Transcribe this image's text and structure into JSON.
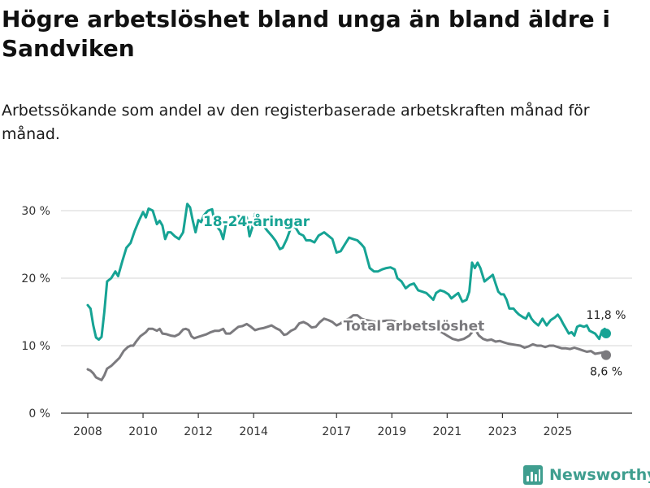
{
  "header": {
    "title": "Högre arbetslöshet bland unga än bland äldre i Sandviken",
    "subtitle": "Arbetssökande som andel av den registerbaserade arbetskraften månad för månad."
  },
  "branding": {
    "name": "Newsworthy"
  },
  "colors": {
    "youth": "#16a394",
    "total": "#7b7a7e",
    "grid": "#d6d6d6",
    "axis": "#333333",
    "brand": "#3f9e8f"
  },
  "chart_data": {
    "type": "line",
    "title": "Högre arbetslöshet bland unga än bland äldre i Sandviken",
    "subtitle": "Arbetssökande som andel av den registerbaserade arbetskraften månad för månad.",
    "xlim": [
      2008.0,
      2026.75
    ],
    "ylim": [
      0,
      33
    ],
    "y_ticks": [
      {
        "value": 0,
        "label": "0 %"
      },
      {
        "value": 10,
        "label": "10 %"
      },
      {
        "value": 20,
        "label": "20 %"
      },
      {
        "value": 30,
        "label": "30 %"
      }
    ],
    "x_ticks": [
      {
        "value": 2008,
        "label": "2008"
      },
      {
        "value": 2010,
        "label": "2010"
      },
      {
        "value": 2012,
        "label": "2012"
      },
      {
        "value": 2014,
        "label": "2014"
      },
      {
        "value": 2017,
        "label": "2017"
      },
      {
        "value": 2019,
        "label": "2019"
      },
      {
        "value": 2021,
        "label": "2021"
      },
      {
        "value": 2023,
        "label": "2023"
      },
      {
        "value": 2025,
        "label": "2025"
      }
    ],
    "series": [
      {
        "name": "18-24-åringar",
        "label": "18-24-åringar",
        "end_label": "11,8 %",
        "points": [
          [
            2008.0,
            16.0
          ],
          [
            2008.1,
            15.5
          ],
          [
            2008.2,
            13.0
          ],
          [
            2008.3,
            11.2
          ],
          [
            2008.4,
            10.9
          ],
          [
            2008.5,
            11.3
          ],
          [
            2008.6,
            15.0
          ],
          [
            2008.7,
            19.5
          ],
          [
            2008.85,
            20.0
          ],
          [
            2009.0,
            21.0
          ],
          [
            2009.1,
            20.3
          ],
          [
            2009.25,
            22.5
          ],
          [
            2009.4,
            24.5
          ],
          [
            2009.55,
            25.2
          ],
          [
            2009.7,
            27.0
          ],
          [
            2009.85,
            28.5
          ],
          [
            2010.0,
            29.8
          ],
          [
            2010.1,
            29.0
          ],
          [
            2010.2,
            30.3
          ],
          [
            2010.35,
            30.0
          ],
          [
            2010.5,
            28.0
          ],
          [
            2010.6,
            28.5
          ],
          [
            2010.7,
            27.8
          ],
          [
            2010.8,
            25.8
          ],
          [
            2010.9,
            26.8
          ],
          [
            2011.0,
            26.8
          ],
          [
            2011.15,
            26.2
          ],
          [
            2011.3,
            25.8
          ],
          [
            2011.45,
            26.8
          ],
          [
            2011.6,
            31.0
          ],
          [
            2011.7,
            30.5
          ],
          [
            2011.8,
            28.5
          ],
          [
            2011.9,
            26.8
          ],
          [
            2012.0,
            28.6
          ],
          [
            2012.1,
            28.3
          ],
          [
            2012.2,
            29.3
          ],
          [
            2012.35,
            30.0
          ],
          [
            2012.5,
            30.2
          ],
          [
            2012.6,
            28.0
          ],
          [
            2012.7,
            27.5
          ],
          [
            2012.8,
            27.0
          ],
          [
            2012.9,
            25.8
          ],
          [
            2013.0,
            28.0
          ],
          [
            2013.15,
            29.2
          ],
          [
            2013.3,
            28.8
          ],
          [
            2013.45,
            29.2
          ],
          [
            2013.6,
            29.0
          ],
          [
            2013.75,
            29.0
          ],
          [
            2013.85,
            26.2
          ],
          [
            2013.95,
            27.5
          ],
          [
            2014.05,
            29.5
          ],
          [
            2014.2,
            29.0
          ],
          [
            2014.35,
            27.8
          ],
          [
            2014.5,
            27.0
          ],
          [
            2014.65,
            26.3
          ],
          [
            2014.8,
            25.5
          ],
          [
            2014.95,
            24.3
          ],
          [
            2015.05,
            24.5
          ],
          [
            2015.2,
            25.8
          ],
          [
            2015.35,
            27.5
          ],
          [
            2015.5,
            27.6
          ],
          [
            2015.65,
            26.6
          ],
          [
            2015.8,
            26.3
          ],
          [
            2015.9,
            25.6
          ],
          [
            2016.05,
            25.6
          ],
          [
            2016.2,
            25.3
          ],
          [
            2016.35,
            26.3
          ],
          [
            2016.55,
            26.8
          ],
          [
            2016.7,
            26.3
          ],
          [
            2016.85,
            25.8
          ],
          [
            2017.0,
            23.8
          ],
          [
            2017.15,
            24.0
          ],
          [
            2017.3,
            25.0
          ],
          [
            2017.45,
            26.0
          ],
          [
            2017.6,
            25.8
          ],
          [
            2017.75,
            25.6
          ],
          [
            2017.9,
            25.0
          ],
          [
            2018.0,
            24.5
          ],
          [
            2018.1,
            23.0
          ],
          [
            2018.2,
            21.5
          ],
          [
            2018.35,
            21.0
          ],
          [
            2018.5,
            21.0
          ],
          [
            2018.65,
            21.3
          ],
          [
            2018.8,
            21.5
          ],
          [
            2018.95,
            21.6
          ],
          [
            2019.1,
            21.3
          ],
          [
            2019.2,
            20.0
          ],
          [
            2019.35,
            19.5
          ],
          [
            2019.5,
            18.5
          ],
          [
            2019.65,
            19.0
          ],
          [
            2019.8,
            19.2
          ],
          [
            2019.95,
            18.2
          ],
          [
            2020.1,
            18.0
          ],
          [
            2020.25,
            17.8
          ],
          [
            2020.4,
            17.2
          ],
          [
            2020.5,
            16.8
          ],
          [
            2020.6,
            17.8
          ],
          [
            2020.75,
            18.2
          ],
          [
            2020.9,
            18.0
          ],
          [
            2021.05,
            17.6
          ],
          [
            2021.15,
            17.0
          ],
          [
            2021.3,
            17.5
          ],
          [
            2021.4,
            17.8
          ],
          [
            2021.55,
            16.5
          ],
          [
            2021.7,
            16.8
          ],
          [
            2021.8,
            18.0
          ],
          [
            2021.9,
            22.3
          ],
          [
            2022.0,
            21.5
          ],
          [
            2022.1,
            22.3
          ],
          [
            2022.2,
            21.5
          ],
          [
            2022.35,
            19.5
          ],
          [
            2022.5,
            20.0
          ],
          [
            2022.65,
            20.5
          ],
          [
            2022.75,
            19.2
          ],
          [
            2022.85,
            18.0
          ],
          [
            2022.95,
            17.6
          ],
          [
            2023.05,
            17.6
          ],
          [
            2023.15,
            16.8
          ],
          [
            2023.25,
            15.5
          ],
          [
            2023.4,
            15.5
          ],
          [
            2023.5,
            15.0
          ],
          [
            2023.6,
            14.6
          ],
          [
            2023.75,
            14.2
          ],
          [
            2023.85,
            14.0
          ],
          [
            2023.95,
            14.8
          ],
          [
            2024.05,
            14.0
          ],
          [
            2024.15,
            13.5
          ],
          [
            2024.3,
            13.0
          ],
          [
            2024.45,
            14.0
          ],
          [
            2024.6,
            13.0
          ],
          [
            2024.75,
            13.8
          ],
          [
            2024.9,
            14.2
          ],
          [
            2025.0,
            14.6
          ],
          [
            2025.1,
            14.0
          ],
          [
            2025.2,
            13.2
          ],
          [
            2025.3,
            12.5
          ],
          [
            2025.4,
            11.8
          ],
          [
            2025.5,
            12.0
          ],
          [
            2025.6,
            11.5
          ],
          [
            2025.7,
            12.8
          ],
          [
            2025.8,
            13.0
          ],
          [
            2025.95,
            12.8
          ],
          [
            2026.05,
            13.0
          ],
          [
            2026.15,
            12.2
          ],
          [
            2026.25,
            12.0
          ],
          [
            2026.35,
            11.8
          ],
          [
            2026.5,
            11.0
          ],
          [
            2026.6,
            12.2
          ],
          [
            2026.7,
            12.5
          ],
          [
            2026.75,
            11.8
          ]
        ]
      },
      {
        "name": "Total arbetslöshet",
        "label": "Total arbetslöshet",
        "end_label": "8,6 %",
        "points": [
          [
            2008.0,
            6.5
          ],
          [
            2008.1,
            6.3
          ],
          [
            2008.2,
            5.9
          ],
          [
            2008.3,
            5.3
          ],
          [
            2008.4,
            5.1
          ],
          [
            2008.5,
            4.9
          ],
          [
            2008.6,
            5.6
          ],
          [
            2008.7,
            6.6
          ],
          [
            2008.85,
            7.0
          ],
          [
            2009.0,
            7.6
          ],
          [
            2009.15,
            8.2
          ],
          [
            2009.3,
            9.2
          ],
          [
            2009.45,
            9.8
          ],
          [
            2009.55,
            10.0
          ],
          [
            2009.65,
            10.0
          ],
          [
            2009.75,
            10.6
          ],
          [
            2009.9,
            11.4
          ],
          [
            2010.0,
            11.7
          ],
          [
            2010.1,
            12.0
          ],
          [
            2010.2,
            12.5
          ],
          [
            2010.35,
            12.5
          ],
          [
            2010.5,
            12.2
          ],
          [
            2010.6,
            12.5
          ],
          [
            2010.7,
            11.8
          ],
          [
            2010.85,
            11.7
          ],
          [
            2011.0,
            11.5
          ],
          [
            2011.15,
            11.4
          ],
          [
            2011.3,
            11.7
          ],
          [
            2011.45,
            12.4
          ],
          [
            2011.55,
            12.5
          ],
          [
            2011.65,
            12.3
          ],
          [
            2011.75,
            11.4
          ],
          [
            2011.85,
            11.1
          ],
          [
            2012.0,
            11.3
          ],
          [
            2012.15,
            11.5
          ],
          [
            2012.3,
            11.7
          ],
          [
            2012.45,
            12.0
          ],
          [
            2012.6,
            12.2
          ],
          [
            2012.75,
            12.2
          ],
          [
            2012.9,
            12.5
          ],
          [
            2013.0,
            11.8
          ],
          [
            2013.15,
            11.8
          ],
          [
            2013.3,
            12.3
          ],
          [
            2013.45,
            12.8
          ],
          [
            2013.6,
            12.9
          ],
          [
            2013.75,
            13.2
          ],
          [
            2013.9,
            12.8
          ],
          [
            2014.05,
            12.3
          ],
          [
            2014.2,
            12.5
          ],
          [
            2014.35,
            12.6
          ],
          [
            2014.5,
            12.8
          ],
          [
            2014.65,
            13.0
          ],
          [
            2014.8,
            12.6
          ],
          [
            2014.95,
            12.3
          ],
          [
            2015.1,
            11.6
          ],
          [
            2015.2,
            11.7
          ],
          [
            2015.35,
            12.2
          ],
          [
            2015.5,
            12.5
          ],
          [
            2015.65,
            13.3
          ],
          [
            2015.8,
            13.5
          ],
          [
            2015.95,
            13.2
          ],
          [
            2016.1,
            12.7
          ],
          [
            2016.25,
            12.8
          ],
          [
            2016.4,
            13.5
          ],
          [
            2016.55,
            14.0
          ],
          [
            2016.7,
            13.8
          ],
          [
            2016.85,
            13.5
          ],
          [
            2017.0,
            13.0
          ],
          [
            2017.15,
            13.3
          ],
          [
            2017.3,
            13.8
          ],
          [
            2017.45,
            14.0
          ],
          [
            2017.6,
            14.5
          ],
          [
            2017.75,
            14.5
          ],
          [
            2017.9,
            14.0
          ],
          [
            2018.05,
            13.8
          ],
          [
            2018.2,
            13.7
          ],
          [
            2018.4,
            13.5
          ],
          [
            2018.6,
            13.6
          ],
          [
            2018.8,
            13.7
          ],
          [
            2019.0,
            13.7
          ],
          [
            2019.2,
            13.5
          ],
          [
            2019.4,
            13.2
          ],
          [
            2019.6,
            13.1
          ],
          [
            2019.8,
            12.9
          ],
          [
            2020.0,
            12.8
          ],
          [
            2020.2,
            12.6
          ],
          [
            2020.4,
            12.5
          ],
          [
            2020.6,
            12.3
          ],
          [
            2020.8,
            12.0
          ],
          [
            2021.0,
            11.5
          ],
          [
            2021.2,
            11.0
          ],
          [
            2021.4,
            10.8
          ],
          [
            2021.6,
            11.0
          ],
          [
            2021.8,
            11.5
          ],
          [
            2022.0,
            12.5
          ],
          [
            2022.15,
            11.5
          ],
          [
            2022.3,
            11.0
          ],
          [
            2022.45,
            10.8
          ],
          [
            2022.6,
            10.9
          ],
          [
            2022.75,
            10.6
          ],
          [
            2022.9,
            10.7
          ],
          [
            2023.05,
            10.5
          ],
          [
            2023.2,
            10.3
          ],
          [
            2023.35,
            10.2
          ],
          [
            2023.5,
            10.1
          ],
          [
            2023.65,
            10.0
          ],
          [
            2023.8,
            9.7
          ],
          [
            2023.95,
            9.9
          ],
          [
            2024.1,
            10.2
          ],
          [
            2024.25,
            10.0
          ],
          [
            2024.4,
            10.0
          ],
          [
            2024.55,
            9.8
          ],
          [
            2024.7,
            10.0
          ],
          [
            2024.85,
            10.0
          ],
          [
            2025.0,
            9.8
          ],
          [
            2025.15,
            9.6
          ],
          [
            2025.3,
            9.6
          ],
          [
            2025.45,
            9.5
          ],
          [
            2025.6,
            9.7
          ],
          [
            2025.75,
            9.5
          ],
          [
            2025.9,
            9.3
          ],
          [
            2026.05,
            9.1
          ],
          [
            2026.2,
            9.2
          ],
          [
            2026.35,
            8.8
          ],
          [
            2026.5,
            8.9
          ],
          [
            2026.65,
            9.0
          ],
          [
            2026.75,
            8.6
          ]
        ]
      }
    ]
  }
}
